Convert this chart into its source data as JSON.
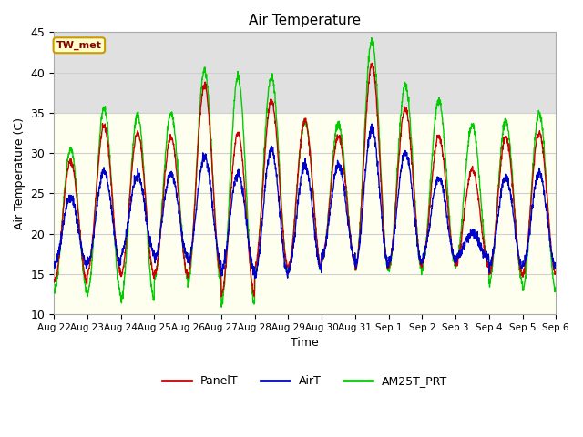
{
  "title": "Air Temperature",
  "xlabel": "Time",
  "ylabel": "Air Temperature (C)",
  "ylim": [
    10,
    45
  ],
  "annotation": "TW_met",
  "annotation_color": "#8B0000",
  "annotation_bg": "#FFFFCC",
  "annotation_border": "#CC9900",
  "background_color": "#ffffff",
  "plot_bg": "#fffff0",
  "shade_band": [
    35,
    45
  ],
  "shade_color": "#e0e0e0",
  "x_tick_labels": [
    "Aug 22",
    "Aug 23",
    "Aug 24",
    "Aug 25",
    "Aug 26",
    "Aug 27",
    "Aug 28",
    "Aug 29",
    "Aug 30",
    "Aug 31",
    "Sep 1",
    "Sep 2",
    "Sep 3",
    "Sep 4",
    "Sep 5",
    "Sep 6"
  ],
  "legend_labels": [
    "PanelT",
    "AirT",
    "AM25T_PRT"
  ],
  "legend_colors": [
    "#cc0000",
    "#0000cc",
    "#00cc00"
  ],
  "line_width": 1.0,
  "grid_color": "#d0d0d0",
  "n_days": 15,
  "samples_per_day": 144,
  "seed": 42,
  "daily_max_panel": [
    29,
    33.3,
    32.5,
    32,
    38.5,
    32.5,
    36.5,
    34,
    32,
    41,
    35.5,
    32,
    28,
    32,
    32.5
  ],
  "daily_max_air": [
    24.5,
    27.8,
    27.2,
    27.5,
    29.5,
    27.5,
    30.5,
    28.5,
    28.5,
    33,
    30,
    27,
    20,
    27,
    27.5
  ],
  "daily_max_green": [
    30.5,
    35.6,
    34.8,
    35,
    40.3,
    39.5,
    39.5,
    34,
    33.5,
    44,
    38.5,
    36.5,
    33.5,
    34,
    35
  ],
  "daily_min_panel": [
    14,
    15.2,
    14.8,
    15,
    14.8,
    12.5,
    15.8,
    15.8,
    16.8,
    15.5,
    16,
    16.5,
    16,
    15,
    15
  ],
  "daily_min_air": [
    16,
    16.2,
    17.5,
    17,
    16.5,
    15.5,
    15,
    15.5,
    17,
    16,
    16.5,
    17,
    17,
    16,
    16
  ],
  "daily_min_green": [
    12.8,
    12.5,
    11.8,
    14.5,
    13.8,
    11.3,
    15.5,
    15.5,
    16.5,
    15.5,
    15.5,
    16,
    16,
    14,
    13
  ]
}
